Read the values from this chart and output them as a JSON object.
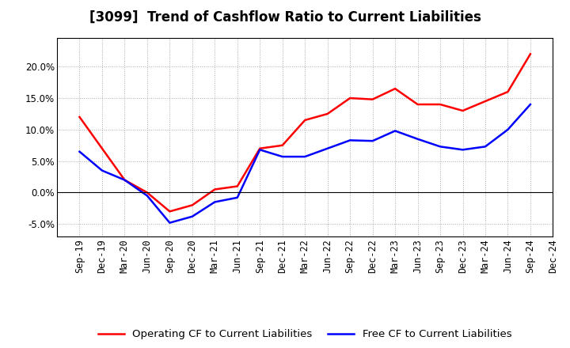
{
  "title": "[3099]  Trend of Cashflow Ratio to Current Liabilities",
  "x_labels": [
    "Sep-19",
    "Dec-19",
    "Mar-20",
    "Jun-20",
    "Sep-20",
    "Dec-20",
    "Mar-21",
    "Jun-21",
    "Sep-21",
    "Dec-21",
    "Mar-22",
    "Jun-22",
    "Sep-22",
    "Dec-22",
    "Mar-23",
    "Jun-23",
    "Sep-23",
    "Dec-23",
    "Mar-24",
    "Jun-24",
    "Sep-24",
    "Dec-24"
  ],
  "operating_cf": [
    0.12,
    0.07,
    0.02,
    0.0,
    -0.03,
    -0.02,
    0.005,
    0.01,
    0.07,
    0.075,
    0.115,
    0.125,
    0.15,
    0.148,
    0.165,
    0.14,
    0.14,
    0.13,
    0.145,
    0.16,
    0.22,
    null
  ],
  "free_cf": [
    0.065,
    0.035,
    0.02,
    -0.005,
    -0.048,
    -0.038,
    -0.015,
    -0.008,
    0.068,
    0.057,
    0.057,
    0.07,
    0.083,
    0.082,
    0.098,
    0.085,
    0.073,
    0.068,
    0.073,
    0.1,
    0.14,
    null
  ],
  "operating_cf_color": "#FF0000",
  "free_cf_color": "#0000FF",
  "background_color": "#FFFFFF",
  "grid_color": "#AAAAAA",
  "ylim": [
    -0.07,
    0.245
  ],
  "yticks": [
    -0.05,
    0.0,
    0.05,
    0.1,
    0.15,
    0.2
  ],
  "legend_op": "Operating CF to Current Liabilities",
  "legend_free": "Free CF to Current Liabilities",
  "title_fontsize": 12,
  "axis_fontsize": 8.5,
  "legend_fontsize": 9.5
}
